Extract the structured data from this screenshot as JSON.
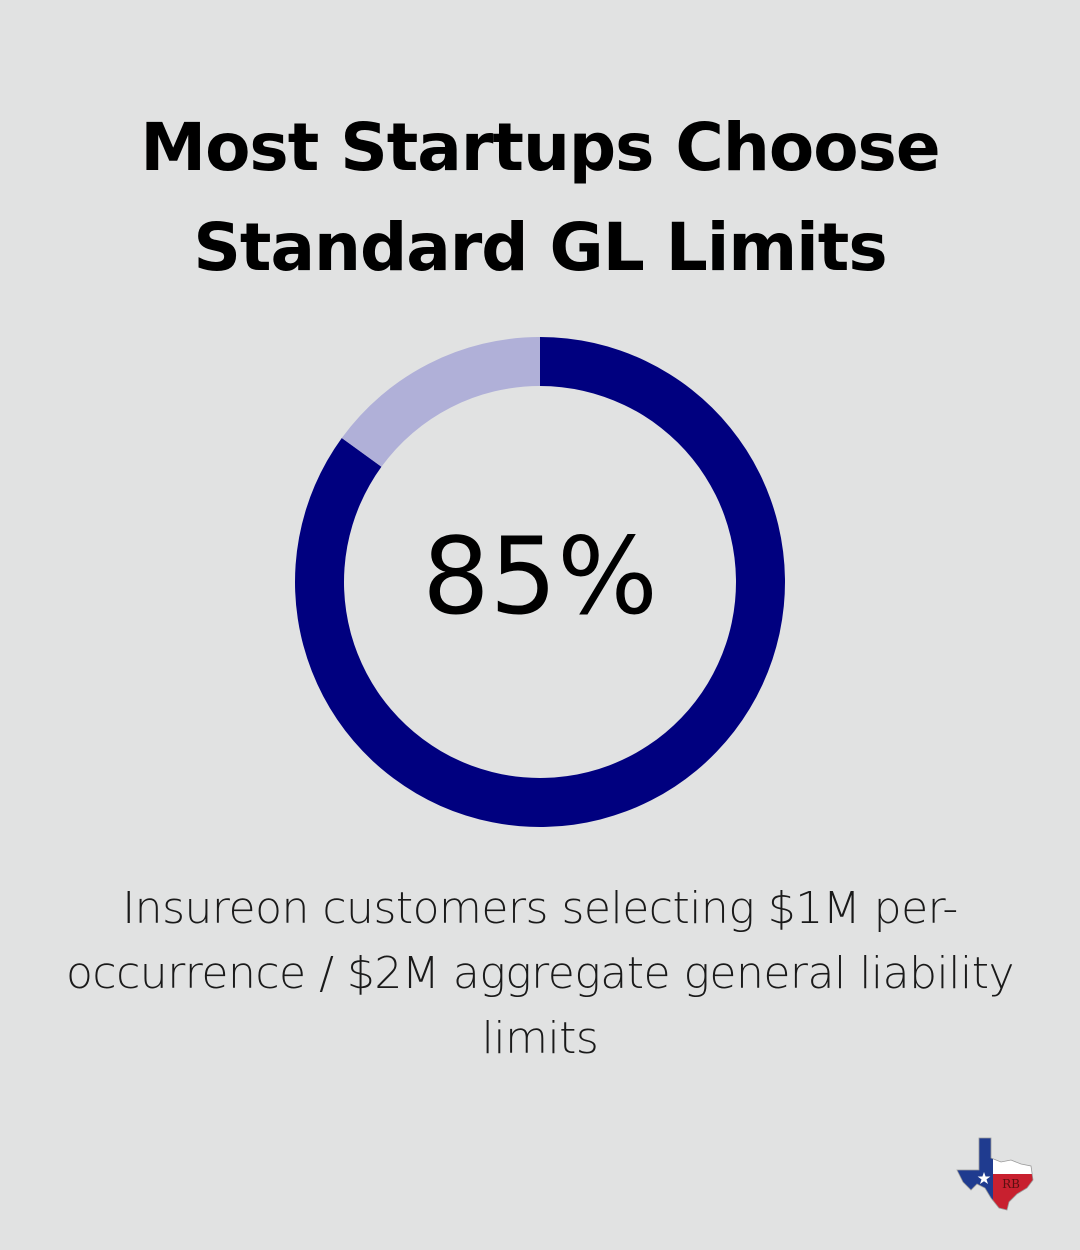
{
  "title": "Most Startups Choose Standard GL Limits",
  "caption": "Insureon customers selecting $1M per-occurrence / $2M aggregate general liability limits",
  "colors": {
    "background": "#e1e2e2",
    "primary": "#00007f",
    "remainder": "#b0b0d8"
  },
  "chart_data": {
    "type": "pie",
    "variant": "donut",
    "center_label": "85%",
    "slices": [
      {
        "value": 85,
        "color": "#00007f"
      },
      {
        "value": 15,
        "color": "#b0b0d8"
      }
    ]
  },
  "logo": {
    "icon": "texas-flag-map-icon",
    "letters": "RB"
  }
}
